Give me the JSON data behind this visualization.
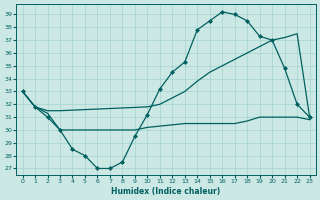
{
  "xlabel": "Humidex (Indice chaleur)",
  "bg_color": "#cce8e4",
  "line_color": "#006060",
  "grid_color": "#99cccc",
  "xlim": [
    -0.5,
    23.5
  ],
  "ylim": [
    26.5,
    39.8
  ],
  "yticks": [
    27,
    28,
    29,
    30,
    31,
    32,
    33,
    34,
    35,
    36,
    37,
    38,
    39
  ],
  "xticks": [
    0,
    1,
    2,
    3,
    4,
    5,
    6,
    7,
    8,
    9,
    10,
    11,
    12,
    13,
    14,
    15,
    16,
    17,
    18,
    19,
    20,
    21,
    22,
    23
  ],
  "line1_x": [
    0,
    1,
    2,
    3,
    4,
    5,
    6,
    7,
    8,
    9,
    10,
    11,
    12,
    13,
    14,
    15,
    16,
    17,
    18,
    19,
    20,
    21,
    22,
    23
  ],
  "line1_y": [
    33,
    31.8,
    31,
    30,
    28.5,
    28,
    27,
    27,
    27.5,
    29.5,
    31.2,
    33.2,
    34.5,
    35.3,
    37.8,
    38.5,
    39.2,
    39,
    38.5,
    37.3,
    37,
    34.8,
    32,
    31
  ],
  "line2_x": [
    0,
    1,
    2,
    3,
    10,
    11,
    12,
    13,
    14,
    15,
    16,
    17,
    18,
    19,
    20,
    21,
    22,
    23
  ],
  "line2_y": [
    33,
    31.8,
    31.5,
    31.5,
    31.8,
    32,
    32.5,
    33,
    33.8,
    34.5,
    35,
    35.5,
    36,
    36.5,
    37,
    37.2,
    37.5,
    31
  ],
  "line3_x": [
    0,
    1,
    2,
    3,
    4,
    5,
    6,
    7,
    8,
    9,
    10,
    11,
    12,
    13,
    14,
    15,
    16,
    17,
    18,
    19,
    20,
    21,
    22,
    23
  ],
  "line3_y": [
    33,
    31.8,
    31.3,
    30,
    30,
    30,
    30,
    30,
    30,
    30,
    30.2,
    30.3,
    30.4,
    30.5,
    30.5,
    30.5,
    30.5,
    30.5,
    30.7,
    31,
    31,
    31,
    31,
    30.8
  ]
}
